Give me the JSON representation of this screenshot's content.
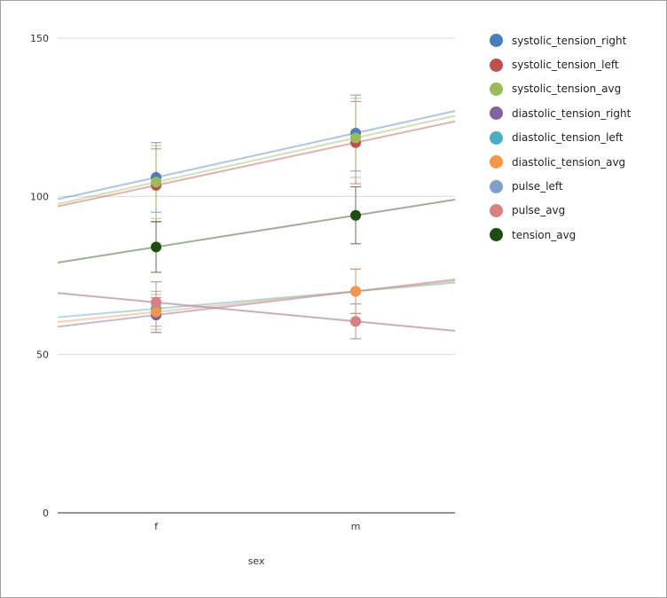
{
  "chart_data": {
    "type": "scatter",
    "title": "",
    "xlabel": "sex",
    "ylabel": "",
    "categories": [
      "f",
      "m"
    ],
    "ylim": [
      0,
      150
    ],
    "yticks": [
      0,
      50,
      100,
      150
    ],
    "grid": true,
    "legend_position": "right",
    "series": [
      {
        "name": "systolic_tension_right",
        "color": "#4a7ebb",
        "values": [
          106,
          120
        ],
        "err_low": [
          95,
          108
        ],
        "err_high": [
          117,
          132
        ]
      },
      {
        "name": "systolic_tension_left",
        "color": "#c0504d",
        "values": [
          103.5,
          117
        ],
        "err_low": [
          92,
          104
        ],
        "err_high": [
          115,
          130
        ]
      },
      {
        "name": "systolic_tension_avg",
        "color": "#9bbb59",
        "values": [
          104.5,
          118.5
        ],
        "err_low": [
          93,
          106
        ],
        "err_high": [
          116,
          131
        ]
      },
      {
        "name": "diastolic_tension_right",
        "color": "#8064a2",
        "values": [
          62.5,
          70
        ],
        "err_low": [
          57,
          63
        ],
        "err_high": [
          68,
          77
        ]
      },
      {
        "name": "diastolic_tension_left",
        "color": "#4bacc6",
        "values": [
          64.5,
          70
        ],
        "err_low": [
          59,
          63
        ],
        "err_high": [
          70,
          77
        ]
      },
      {
        "name": "diastolic_tension_avg",
        "color": "#f79646",
        "values": [
          63.5,
          70
        ],
        "err_low": [
          58,
          63
        ],
        "err_high": [
          69,
          77
        ]
      },
      {
        "name": "pulse_left",
        "color": "#7f9fcf",
        "values": [
          66.5,
          60.5
        ],
        "err_low": [
          57,
          55
        ],
        "err_high": [
          73,
          66
        ]
      },
      {
        "name": "pulse_avg",
        "color": "#d98080",
        "values": [
          66.5,
          60.5
        ],
        "err_low": [
          57,
          55
        ],
        "err_high": [
          73,
          66
        ]
      },
      {
        "name": "tension_avg",
        "color": "#1e4d12",
        "values": [
          84,
          94
        ],
        "err_low": [
          76,
          85
        ],
        "err_high": [
          92,
          103
        ]
      }
    ]
  }
}
